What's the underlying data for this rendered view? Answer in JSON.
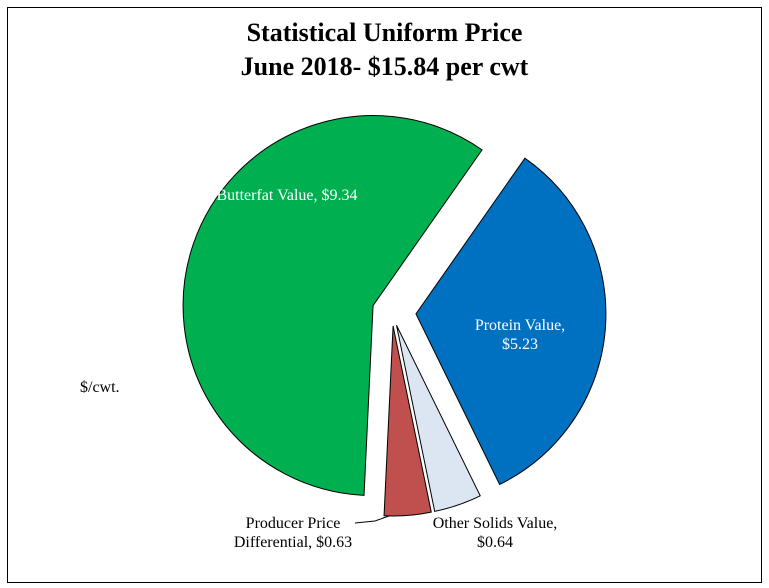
{
  "chart_data": {
    "type": "pie",
    "title": "Statistical Uniform Price",
    "subtitle": "June 2018- $15.84 per cwt",
    "unit_label": "$/cwt.",
    "categories": [
      "Protein Value,",
      "Other Solids Value,",
      "Producer Price Differential,",
      "Butterfat Value,"
    ],
    "values": [
      5.23,
      0.64,
      0.63,
      9.34
    ],
    "value_labels": [
      "$5.23",
      "$0.64",
      "$0.63",
      "$9.34"
    ],
    "colors": [
      "#0070c0",
      "#dce6f2",
      "#c0504d",
      "#00b050"
    ]
  }
}
